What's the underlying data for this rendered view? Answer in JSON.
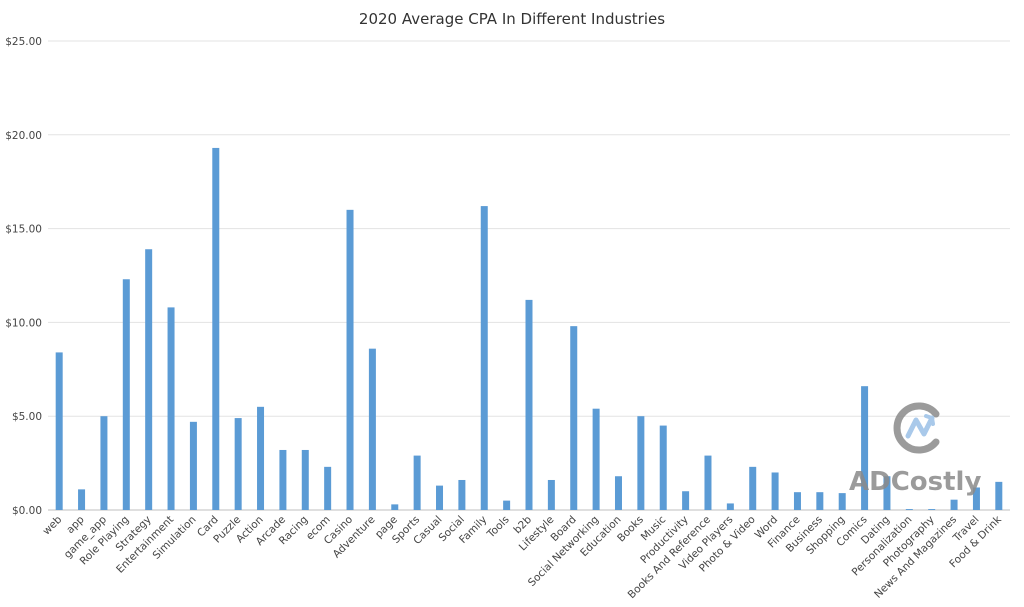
{
  "chart_data": {
    "type": "bar",
    "title": "2020 Average CPA In Different Industries",
    "xlabel": "",
    "ylabel": "",
    "ylim": [
      0,
      25
    ],
    "yticks": [
      "$0.00",
      "$5.00",
      "$10.00",
      "$15.00",
      "$20.00",
      "$25.00"
    ],
    "ytick_values": [
      0,
      5,
      10,
      15,
      20,
      25
    ],
    "grid": true,
    "legend": "none",
    "bar_color": "#5b9bd5",
    "categories": [
      "web",
      "app",
      "game_app",
      "Role Playing",
      "Strategy",
      "Entertainment",
      "Simulation",
      "Card",
      "Puzzle",
      "Action",
      "Arcade",
      "Racing",
      "ecom",
      "Casino",
      "Adventure",
      "page",
      "Sports",
      "Casual",
      "Social",
      "Family",
      "Tools",
      "b2b",
      "Lifestyle",
      "Board",
      "Social Networking",
      "Education",
      "Books",
      "Music",
      "Productivity",
      "Books And Reference",
      "Video Players",
      "Photo & Video",
      "Word",
      "Finance",
      "Business",
      "Shopping",
      "Comics",
      "Dating",
      "Personalization",
      "Photography",
      "News And Magazines",
      "Travel",
      "Food & Drink"
    ],
    "values": [
      8.4,
      1.1,
      5.0,
      12.3,
      13.9,
      10.8,
      4.7,
      19.3,
      4.9,
      5.5,
      3.2,
      3.2,
      2.3,
      16.0,
      8.6,
      0.3,
      2.9,
      1.3,
      1.6,
      16.2,
      0.5,
      11.2,
      1.6,
      9.8,
      5.4,
      1.8,
      5.0,
      4.5,
      1.0,
      2.9,
      0.35,
      2.3,
      2.0,
      0.95,
      0.95,
      0.9,
      6.6,
      1.8,
      0.05,
      0.05,
      0.55,
      1.2,
      1.5
    ]
  },
  "watermark": {
    "text": "ADCostly",
    "color": "#8a8a8a"
  }
}
